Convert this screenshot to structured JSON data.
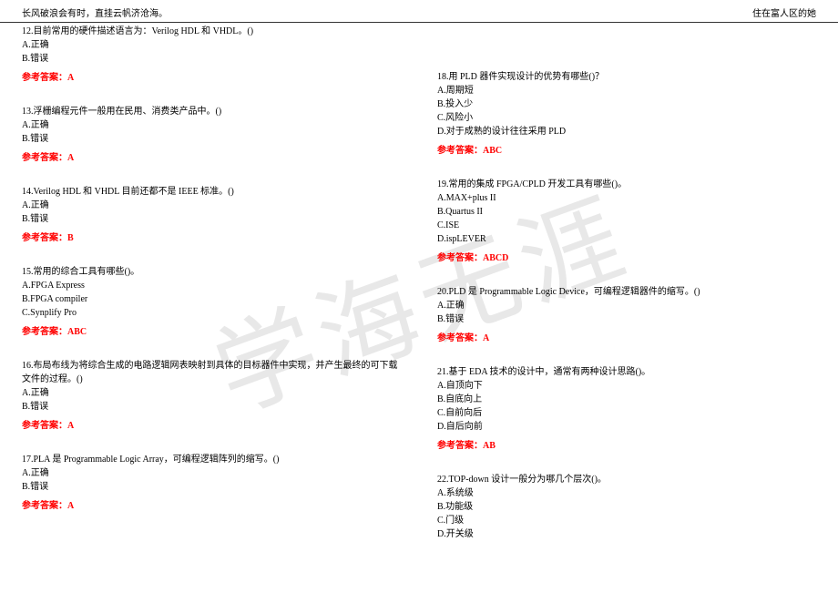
{
  "header": {
    "left": "长风破浪会有时，直挂云帆济沧海。",
    "right": "住在富人区的她"
  },
  "watermark": "学海无涯",
  "leftColumn": [
    {
      "text": "12.目前常用的硬件描述语言为：Verilog HDL 和 VHDL。()",
      "options": [
        "A.正确",
        "B.错误"
      ],
      "answer": "参考答案：A"
    },
    {
      "text": "13.浮栅编程元件一般用在民用、消费类产品中。()",
      "options": [
        "A.正确",
        "B.错误"
      ],
      "answer": "参考答案：A"
    },
    {
      "text": "14.Verilog HDL 和 VHDL 目前还都不是 IEEE 标准。()",
      "options": [
        "A.正确",
        "B.错误"
      ],
      "answer": "参考答案：B"
    },
    {
      "text": "15.常用的综合工具有哪些()。",
      "options": [
        "A.FPGA Express",
        "B.FPGA compiler",
        "C.Synplify Pro"
      ],
      "answer": "参考答案：ABC"
    },
    {
      "text": "16.布局布线为将综合生成的电路逻辑网表映射到具体的目标器件中实现，并产生最终的可下载文件的过程。()",
      "options": [
        "A.正确",
        "B.错误"
      ],
      "answer": "参考答案：A"
    },
    {
      "text": "17.PLA 是 Programmable Logic Array，可编程逻辑阵列的缩写。()",
      "options": [
        "A.正确",
        "B.错误"
      ],
      "answer": "参考答案：A"
    }
  ],
  "rightColumn": [
    {
      "text": "18.用 PLD 器件实现设计的优势有哪些()？",
      "options": [
        "A.周期短",
        "B.投入少",
        "C.风险小",
        "D.对于成熟的设计往往采用 PLD"
      ],
      "answer": "参考答案：ABC"
    },
    {
      "text": "19.常用的集成 FPGA/CPLD 开发工具有哪些()。",
      "options": [
        "A.MAX+plus II",
        "B.Quartus II",
        "C.ISE",
        "D.ispLEVER"
      ],
      "answer": "参考答案：ABCD"
    },
    {
      "text": "20.PLD 是 Programmable Logic Device，可编程逻辑器件的缩写。()",
      "options": [
        "A.正确",
        "B.错误"
      ],
      "answer": "参考答案：A"
    },
    {
      "text": "21.基于 EDA 技术的设计中，通常有两种设计思路()。",
      "options": [
        "A.自顶向下",
        "B.自底向上",
        "C.自前向后",
        "D.自后向前"
      ],
      "answer": "参考答案：AB"
    },
    {
      "text": "22.TOP-down 设计一般分为哪几个层次()。",
      "options": [
        "A.系统级",
        "B.功能级",
        "C.门级",
        "D.开关级"
      ],
      "answer": ""
    }
  ]
}
